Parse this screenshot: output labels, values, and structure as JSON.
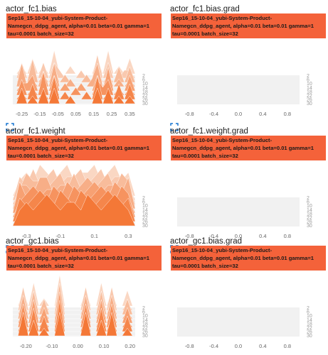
{
  "run": {
    "label_lines": [
      " Sep16_15-10-04_yubi-System-Product-",
      "Namegcn_ddpg_agent, alpha=0.01 beta=0.01 gamma=1",
      "tau=0.0001 batch_size=32"
    ]
  },
  "expand_icon": "fullscreen-icon",
  "colors": {
    "accent": "#f4623a",
    "text": "#212121",
    "axis": "#666666"
  },
  "cards": [
    {
      "title": "actor_fc1.bias",
      "x_ticks": [
        "-0.25",
        "-0.15",
        "-0.05",
        "0.05",
        "0.15",
        "0.25",
        "0.35"
      ],
      "x_tick_values": [
        -0.25,
        -0.15,
        -0.05,
        0.05,
        0.15,
        0.25,
        0.35
      ],
      "x_range": [
        -0.3,
        0.38
      ],
      "y_ticks": [
        "2",
        "6",
        "10",
        "14",
        "18",
        "22",
        "26",
        "30"
      ],
      "has_data": true
    },
    {
      "title": "actor_fc1.bias.grad",
      "x_ticks": [
        "-0.8",
        "-0.4",
        "0.0",
        "0.4",
        "0.8"
      ],
      "x_tick_values": [
        -0.8,
        -0.4,
        0.0,
        0.4,
        0.8
      ],
      "x_range": [
        -1.0,
        1.0
      ],
      "y_ticks": [
        "2",
        "6",
        "10",
        "14",
        "18",
        "22",
        "26",
        "30"
      ],
      "has_data": false
    },
    {
      "title": "actor_fc1.weight",
      "x_ticks": [
        "-0.3",
        "-0.1",
        "0.1",
        "0.3"
      ],
      "x_tick_values": [
        -0.3,
        -0.1,
        0.1,
        0.3
      ],
      "x_range": [
        -0.38,
        0.34
      ],
      "y_ticks": [
        "2",
        "6",
        "10",
        "14",
        "18",
        "22",
        "26",
        "30"
      ],
      "has_data": true
    },
    {
      "title": "actor_fc1.weight.grad",
      "x_ticks": [
        "-0.8",
        "-0.4",
        "0.0",
        "0.4",
        "0.8"
      ],
      "x_tick_values": [
        -0.8,
        -0.4,
        0.0,
        0.4,
        0.8
      ],
      "x_range": [
        -1.0,
        1.0
      ],
      "y_ticks": [
        "2",
        "6",
        "10",
        "14",
        "18",
        "22",
        "26",
        "30"
      ],
      "has_data": false
    },
    {
      "title": "actor_gc1.bias",
      "x_ticks": [
        "-0.20",
        "-0.10",
        "0.00",
        "0.10",
        "0.20"
      ],
      "x_tick_values": [
        -0.2,
        -0.1,
        0.0,
        0.1,
        0.2
      ],
      "x_range": [
        -0.25,
        0.22
      ],
      "y_ticks": [
        "2",
        "6",
        "10",
        "14",
        "18",
        "22",
        "26",
        "30"
      ],
      "has_data": true
    },
    {
      "title": "actor_gc1.bias.grad",
      "x_ticks": [
        "-0.8",
        "-0.4",
        "0.0",
        "0.4",
        "0.8"
      ],
      "x_tick_values": [
        -0.8,
        -0.4,
        0.0,
        0.4,
        0.8
      ],
      "x_range": [
        -1.0,
        1.0
      ],
      "y_ticks": [
        "2",
        "6",
        "10",
        "14",
        "18",
        "22",
        "26",
        "30"
      ],
      "has_data": false
    }
  ],
  "chart_data": [
    {
      "type": "area",
      "title": "actor_fc1.bias",
      "style": "histogram-offset",
      "x": [
        -0.28,
        -0.25,
        -0.22,
        -0.19,
        -0.16,
        -0.13,
        -0.1,
        -0.07,
        -0.04,
        -0.01,
        0.02,
        0.05,
        0.08,
        0.11,
        0.14,
        0.17,
        0.2,
        0.23,
        0.26,
        0.29,
        0.32,
        0.35,
        0.38
      ],
      "series": [
        {
          "values": [
            0,
            1,
            0,
            2,
            0,
            1,
            0,
            3,
            0,
            0,
            1,
            0,
            0,
            0,
            0,
            2,
            0,
            3,
            0,
            1,
            0,
            2,
            0
          ]
        },
        {
          "values": [
            0,
            2,
            0,
            1,
            0,
            2,
            0,
            2,
            1,
            0,
            0,
            0,
            1,
            0,
            0,
            3,
            0,
            2,
            0,
            0,
            1,
            1,
            0
          ]
        },
        {
          "values": [
            0,
            1,
            0,
            3,
            0,
            1,
            0,
            2,
            0,
            1,
            0,
            0,
            0,
            1,
            0,
            2,
            0,
            1,
            0,
            2,
            0,
            2,
            0
          ]
        },
        {
          "values": [
            0,
            3,
            0,
            1,
            0,
            2,
            0,
            3,
            0,
            0,
            1,
            0,
            0,
            0,
            1,
            3,
            0,
            2,
            0,
            1,
            0,
            1,
            0
          ]
        },
        {
          "values": [
            0,
            1,
            1,
            2,
            0,
            1,
            0,
            2,
            0,
            1,
            0,
            0,
            1,
            0,
            0,
            2,
            0,
            3,
            0,
            0,
            0,
            2,
            0
          ]
        },
        {
          "values": [
            0,
            2,
            0,
            1,
            0,
            3,
            0,
            1,
            0,
            0,
            0,
            1,
            0,
            0,
            0,
            2,
            1,
            2,
            0,
            1,
            0,
            1,
            0
          ]
        },
        {
          "values": [
            0,
            1,
            0,
            2,
            0,
            1,
            0,
            3,
            0,
            1,
            0,
            0,
            0,
            1,
            0,
            3,
            0,
            1,
            0,
            2,
            0,
            2,
            0
          ]
        },
        {
          "values": [
            0,
            2,
            0,
            1,
            0,
            2,
            0,
            2,
            0,
            0,
            1,
            0,
            0,
            0,
            0,
            2,
            0,
            2,
            0,
            1,
            0,
            1,
            0
          ]
        }
      ]
    },
    {
      "type": "area",
      "title": "actor_fc1.weight",
      "style": "histogram-offset",
      "x": [
        -0.38,
        -0.34,
        -0.3,
        -0.26,
        -0.22,
        -0.18,
        -0.14,
        -0.1,
        -0.06,
        -0.02,
        0.02,
        0.06,
        0.1,
        0.14,
        0.18,
        0.22,
        0.26,
        0.3,
        0.34
      ],
      "series": [
        {
          "values": [
            0,
            2,
            3,
            2,
            4,
            3,
            2,
            3,
            4,
            2,
            3,
            3,
            4,
            2,
            3,
            4,
            2,
            3,
            0
          ]
        },
        {
          "values": [
            0,
            3,
            2,
            4,
            2,
            3,
            4,
            2,
            3,
            3,
            4,
            2,
            3,
            4,
            2,
            3,
            3,
            2,
            0
          ]
        },
        {
          "values": [
            0,
            2,
            4,
            3,
            3,
            2,
            3,
            4,
            2,
            4,
            2,
            3,
            2,
            3,
            4,
            2,
            4,
            3,
            0
          ]
        },
        {
          "values": [
            0,
            3,
            3,
            2,
            4,
            4,
            2,
            3,
            3,
            2,
            3,
            4,
            3,
            2,
            3,
            3,
            2,
            4,
            0
          ]
        },
        {
          "values": [
            0,
            4,
            2,
            3,
            2,
            3,
            3,
            2,
            4,
            3,
            2,
            3,
            4,
            3,
            2,
            4,
            3,
            2,
            0
          ]
        },
        {
          "values": [
            0,
            2,
            3,
            4,
            3,
            2,
            4,
            3,
            2,
            4,
            3,
            2,
            3,
            4,
            3,
            2,
            4,
            3,
            0
          ]
        },
        {
          "values": [
            0,
            3,
            2,
            3,
            4,
            3,
            2,
            4,
            3,
            2,
            4,
            3,
            2,
            3,
            4,
            3,
            2,
            3,
            0
          ]
        },
        {
          "values": [
            0,
            2,
            3,
            2,
            3,
            4,
            3,
            2,
            3,
            3,
            2,
            4,
            3,
            2,
            3,
            4,
            3,
            2,
            0
          ]
        }
      ]
    },
    {
      "type": "area",
      "title": "actor_gc1.bias",
      "style": "histogram-offset",
      "x": [
        -0.25,
        -0.23,
        -0.21,
        -0.19,
        -0.17,
        -0.15,
        -0.13,
        -0.11,
        -0.09,
        -0.07,
        -0.05,
        -0.03,
        -0.01,
        0.01,
        0.03,
        0.05,
        0.07,
        0.09,
        0.11,
        0.13,
        0.15,
        0.17,
        0.19,
        0.21,
        0.22
      ],
      "series": [
        {
          "values": [
            0,
            0,
            2,
            0,
            3,
            0,
            1,
            0,
            0,
            4,
            0,
            0,
            0,
            0,
            2,
            0,
            0,
            3,
            0,
            2,
            0,
            0,
            2,
            0,
            0
          ]
        },
        {
          "values": [
            0,
            0,
            3,
            0,
            2,
            0,
            1,
            0,
            0,
            3,
            0,
            0,
            0,
            0,
            3,
            0,
            0,
            2,
            0,
            3,
            0,
            0,
            1,
            0,
            0
          ]
        },
        {
          "values": [
            0,
            0,
            2,
            0,
            3,
            0,
            2,
            0,
            0,
            4,
            0,
            0,
            0,
            0,
            2,
            0,
            0,
            3,
            0,
            2,
            0,
            0,
            2,
            0,
            0
          ]
        },
        {
          "values": [
            0,
            0,
            3,
            0,
            2,
            0,
            1,
            0,
            0,
            3,
            0,
            0,
            0,
            0,
            3,
            0,
            0,
            2,
            0,
            3,
            0,
            0,
            1,
            0,
            0
          ]
        },
        {
          "values": [
            0,
            0,
            2,
            0,
            3,
            0,
            2,
            0,
            0,
            4,
            0,
            0,
            0,
            0,
            2,
            0,
            0,
            3,
            0,
            2,
            0,
            0,
            2,
            0,
            0
          ]
        },
        {
          "values": [
            0,
            0,
            3,
            0,
            2,
            0,
            1,
            0,
            0,
            3,
            0,
            0,
            0,
            0,
            3,
            0,
            0,
            2,
            0,
            3,
            0,
            0,
            1,
            0,
            0
          ]
        },
        {
          "values": [
            0,
            0,
            2,
            0,
            3,
            0,
            2,
            0,
            0,
            4,
            0,
            0,
            0,
            0,
            2,
            0,
            0,
            3,
            0,
            2,
            0,
            0,
            2,
            0,
            0
          ]
        },
        {
          "values": [
            0,
            0,
            3,
            0,
            2,
            0,
            1,
            0,
            0,
            3,
            0,
            0,
            0,
            0,
            3,
            0,
            0,
            2,
            0,
            3,
            0,
            0,
            1,
            0,
            0
          ]
        }
      ]
    }
  ]
}
